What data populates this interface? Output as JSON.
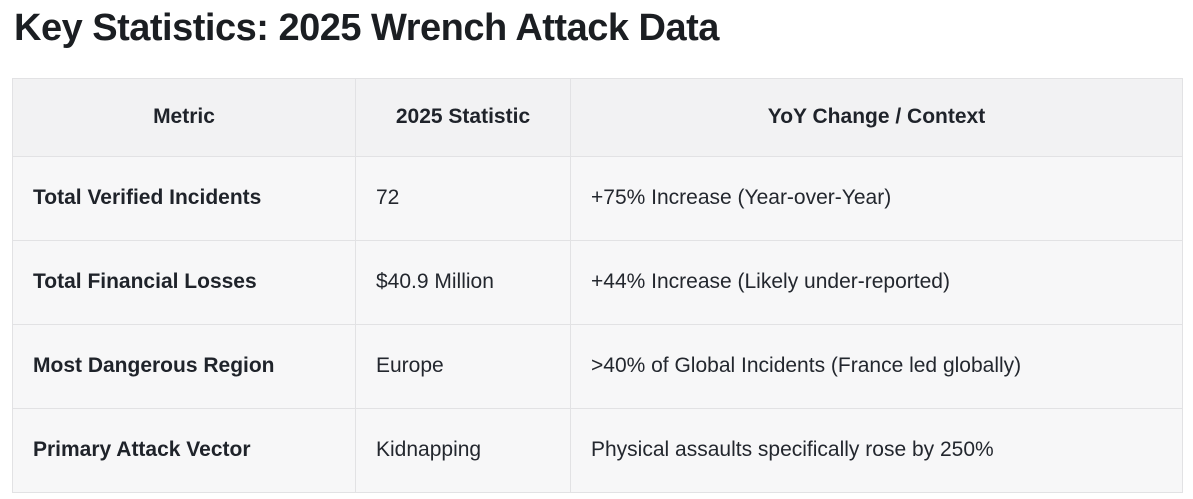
{
  "page": {
    "title": "Key Statistics: 2025 Wrench Attack Data"
  },
  "table": {
    "columns": [
      {
        "label": "Metric"
      },
      {
        "label": "2025 Statistic"
      },
      {
        "label": "YoY Change / Context"
      }
    ],
    "rows": [
      {
        "metric": "Total Verified Incidents",
        "statistic": "72",
        "context": "+75% Increase (Year-over-Year)"
      },
      {
        "metric": "Total Financial Losses",
        "statistic": "$40.9 Million",
        "context": "+44% Increase (Likely under-reported)"
      },
      {
        "metric": "Most Dangerous Region",
        "statistic": "Europe",
        "context": ">40% of Global Incidents (France led globally)"
      },
      {
        "metric": "Primary Attack Vector",
        "statistic": "Kidnapping",
        "context": "Physical assaults specifically rose by 250%"
      }
    ],
    "colors": {
      "header_bg": "#f2f2f3",
      "row_bg": "#f7f7f8",
      "border": "#e2e2e4",
      "title_text": "#1b1e22",
      "body_text": "#23272e"
    }
  }
}
